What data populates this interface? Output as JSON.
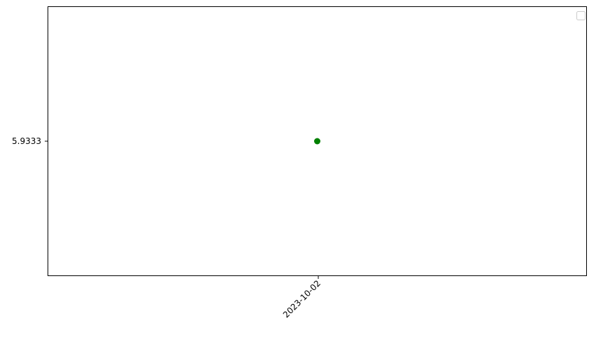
{
  "chart_data": {
    "type": "scatter",
    "x": [
      "2023-10-02"
    ],
    "y": [
      5.9333
    ],
    "series": [
      {
        "x": [
          "2023-10-02"
        ],
        "values": [
          5.9333
        ],
        "color": "#008000"
      }
    ],
    "x_tick_labels": [
      "2023-10-02"
    ],
    "y_tick_labels": [
      "5.9333"
    ],
    "x_tick_rotation_deg": 45,
    "legend": {
      "placement": "top-right",
      "entries": []
    },
    "grid": false,
    "marker": "circle"
  }
}
